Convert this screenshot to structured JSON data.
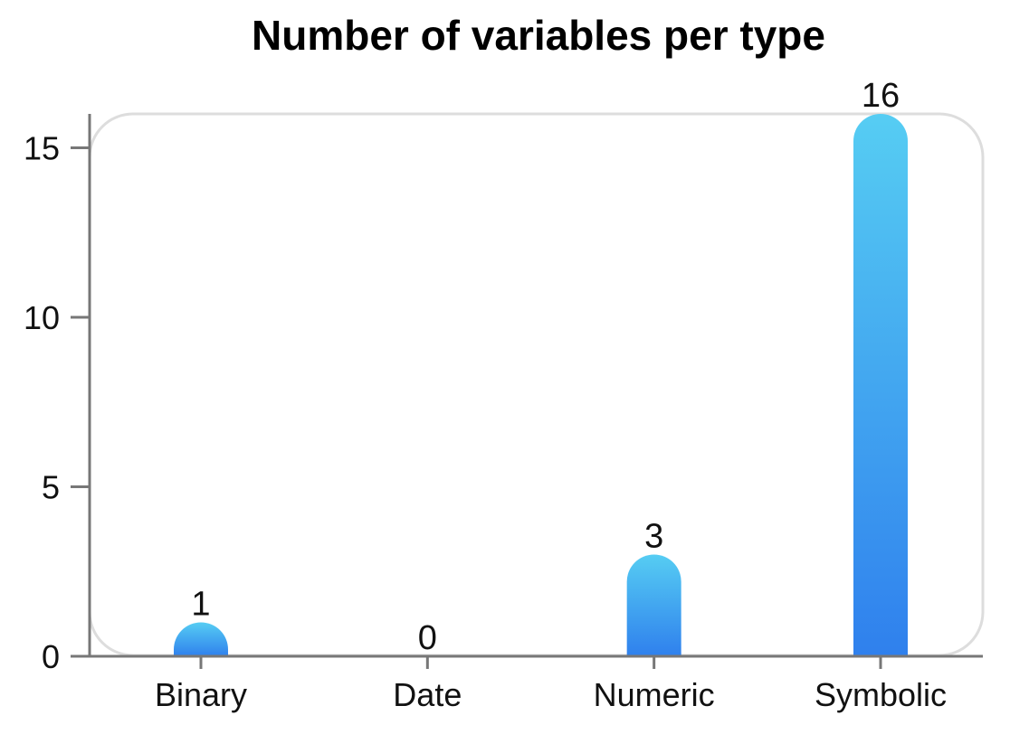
{
  "chart_data": {
    "type": "bar",
    "title": "Number of variables per type",
    "xlabel": "",
    "ylabel": "",
    "categories": [
      "Binary",
      "Date",
      "Numeric",
      "Symbolic"
    ],
    "values": [
      1,
      0,
      3,
      16
    ],
    "data_labels": [
      "1",
      "0",
      "3",
      "16"
    ],
    "ylim": [
      0,
      16
    ],
    "yticks": [
      0,
      5,
      10,
      15
    ],
    "ytick_labels": [
      "0",
      "5",
      "10",
      "15"
    ],
    "grid": false,
    "legend": "none",
    "colors": {
      "bar_top": "#56cdf3",
      "bar_bottom": "#2f80ed",
      "axis": "#777777",
      "frame": "#dddddd"
    }
  }
}
